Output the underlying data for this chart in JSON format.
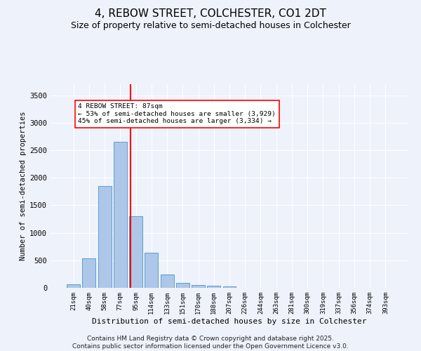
{
  "title": "4, REBOW STREET, COLCHESTER, CO1 2DT",
  "subtitle": "Size of property relative to semi-detached houses in Colchester",
  "xlabel": "Distribution of semi-detached houses by size in Colchester",
  "ylabel": "Number of semi-detached properties",
  "categories": [
    "21sqm",
    "40sqm",
    "58sqm",
    "77sqm",
    "95sqm",
    "114sqm",
    "133sqm",
    "151sqm",
    "170sqm",
    "188sqm",
    "207sqm",
    "226sqm",
    "244sqm",
    "263sqm",
    "281sqm",
    "300sqm",
    "319sqm",
    "337sqm",
    "356sqm",
    "374sqm",
    "393sqm"
  ],
  "values": [
    70,
    530,
    1850,
    2650,
    1300,
    640,
    240,
    90,
    55,
    40,
    30,
    0,
    0,
    0,
    0,
    0,
    0,
    0,
    0,
    0,
    0
  ],
  "bar_color": "#aec6e8",
  "bar_edge_color": "#5a9fd4",
  "vline_x": 3.68,
  "vline_color": "red",
  "annotation_text": "4 REBOW STREET: 87sqm\n← 53% of semi-detached houses are smaller (3,929)\n45% of semi-detached houses are larger (3,334) →",
  "ylim": [
    0,
    3700
  ],
  "yticks": [
    0,
    500,
    1000,
    1500,
    2000,
    2500,
    3000,
    3500
  ],
  "footer_line1": "Contains HM Land Registry data © Crown copyright and database right 2025.",
  "footer_line2": "Contains public sector information licensed under the Open Government Licence v3.0.",
  "bg_color": "#eef2fb",
  "plot_bg_color": "#eef2fb",
  "title_fontsize": 11,
  "subtitle_fontsize": 9,
  "axis_fontsize": 7.5,
  "ylabel_fontsize": 7.5,
  "xlabel_fontsize": 8,
  "footer_fontsize": 6.5
}
